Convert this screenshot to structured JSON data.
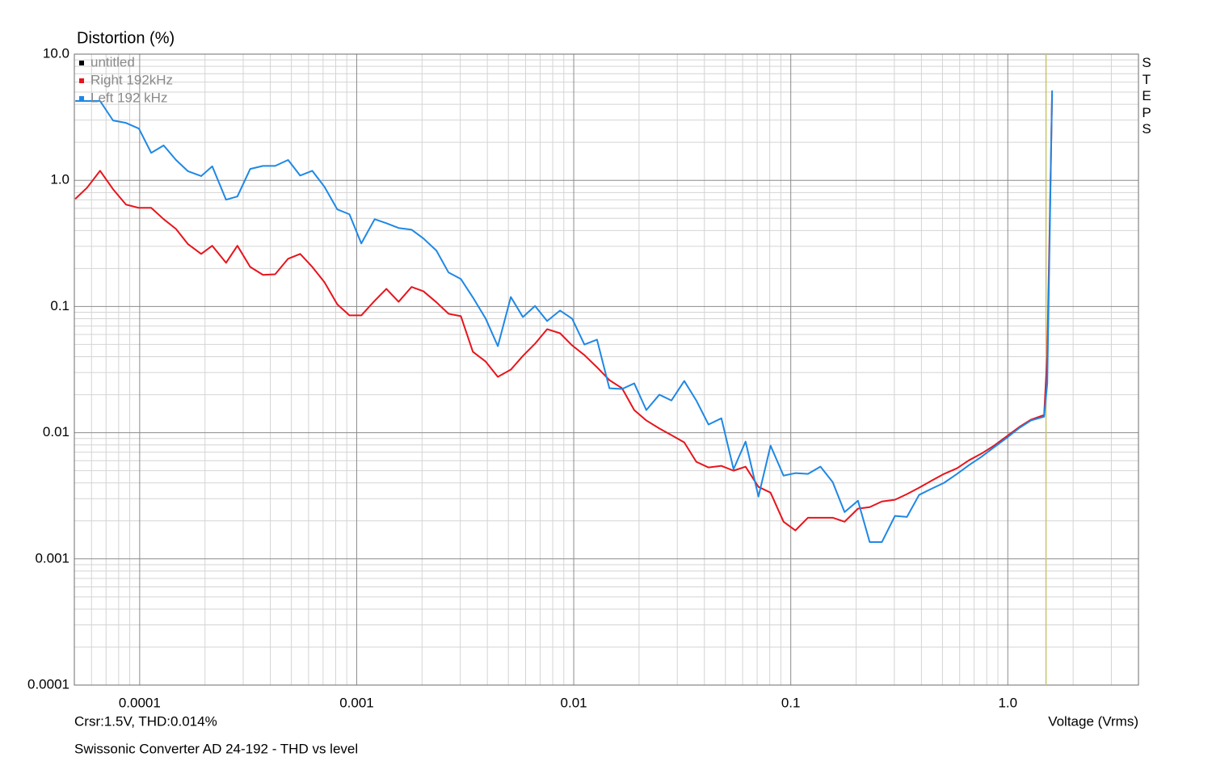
{
  "chart_data": {
    "type": "line",
    "title": "Distortion (%)",
    "subtitle": "Swissonic Converter AD 24-192 - THD vs level",
    "x_label": "Voltage (Vrms)",
    "side_label": "STEPS",
    "annotation": "Crsr:1.5V, THD:0.014%",
    "cursor_x": 1.5,
    "cursor_color": "#c8c46a",
    "log_x": true,
    "log_y": true,
    "grid": true,
    "legend": "top-left",
    "xlim": [
      5e-05,
      4
    ],
    "ylim": [
      0.0001,
      10
    ],
    "xticks": [
      0.0001,
      0.001,
      0.01,
      0.1,
      {
        "value": 1,
        "label": "1.0"
      }
    ],
    "yticks": [
      0.0001,
      0.001,
      0.01,
      0.1,
      {
        "value": 1,
        "label": "1.0"
      },
      {
        "value": 10,
        "label": "10.0"
      }
    ],
    "x": [
      5.05e-05,
      5.73e-05,
      6.57e-05,
      7.54e-05,
      8.65e-05,
      9.92e-05,
      0.000113,
      0.000129,
      0.000147,
      0.000167,
      0.000192,
      0.000216,
      0.00025,
      0.000282,
      0.000323,
      0.00037,
      0.000421,
      0.000483,
      0.000549,
      0.000624,
      0.00071,
      0.000814,
      0.000926,
      0.00105,
      0.00121,
      0.00137,
      0.00156,
      0.00179,
      0.00203,
      0.00233,
      0.00265,
      0.00302,
      0.00343,
      0.00393,
      0.00447,
      0.00513,
      0.00583,
      0.00663,
      0.00754,
      0.00865,
      0.00983,
      0.0112,
      0.0128,
      0.0146,
      0.0167,
      0.019,
      0.0216,
      0.0248,
      0.0282,
      0.0323,
      0.0367,
      0.0418,
      0.0479,
      0.0545,
      0.0619,
      0.071,
      0.0807,
      0.0926,
      0.105,
      0.12,
      0.137,
      0.156,
      0.177,
      0.204,
      0.231,
      0.263,
      0.302,
      0.343,
      0.39,
      0.447,
      0.508,
      0.583,
      0.663,
      0.754,
      0.865,
      0.983,
      1.13,
      1.28,
      1.47,
      1.52,
      1.6
    ],
    "series": [
      {
        "name": "untitled",
        "color": "#000000",
        "values": [
          null,
          null,
          null,
          null,
          null,
          null,
          null,
          null,
          null,
          null,
          null,
          null,
          null,
          null,
          null,
          null,
          null,
          null,
          null,
          null,
          null,
          null,
          null,
          null,
          null,
          null,
          null,
          null,
          null,
          null,
          null,
          null,
          null,
          null,
          null,
          null,
          null,
          null,
          null,
          null,
          null,
          null,
          null,
          null,
          null,
          null,
          null,
          null,
          null,
          null,
          null,
          null,
          null,
          null,
          null,
          null,
          null,
          null,
          null,
          null,
          null,
          null,
          null,
          null,
          null,
          null,
          null,
          null,
          null,
          null,
          null,
          null,
          null,
          null,
          null,
          null,
          null,
          null,
          null,
          null,
          null
        ]
      },
      {
        "name": "Right 192kHz",
        "color": "#e8141c",
        "values": [
          0.712,
          0.876,
          1.19,
          0.85,
          0.642,
          0.605,
          0.605,
          0.492,
          0.412,
          0.312,
          0.261,
          0.303,
          0.222,
          0.303,
          0.206,
          0.178,
          0.18,
          0.239,
          0.261,
          0.206,
          0.156,
          0.104,
          0.085,
          0.085,
          0.111,
          0.138,
          0.109,
          0.143,
          0.132,
          0.108,
          0.0876,
          0.0838,
          0.0438,
          0.0366,
          0.0277,
          0.0316,
          0.0406,
          0.0507,
          0.0661,
          0.0614,
          0.0492,
          0.0412,
          0.033,
          0.0261,
          0.0225,
          0.0151,
          0.0125,
          0.0108,
          0.00957,
          0.00838,
          0.00588,
          0.0053,
          0.00546,
          0.005,
          0.00538,
          0.00372,
          0.00335,
          0.00197,
          0.00168,
          0.00212,
          0.00212,
          0.00212,
          0.00197,
          0.0025,
          0.00257,
          0.00285,
          0.00294,
          0.00326,
          0.00366,
          0.00418,
          0.00471,
          0.00522,
          0.00605,
          0.00681,
          0.0079,
          0.00929,
          0.0111,
          0.0127,
          0.0138,
          0.0412,
          4.78
        ]
      },
      {
        "name": "Left 192 kHz",
        "color": "#1e88e5",
        "values": [
          4.25,
          4.25,
          4.25,
          2.98,
          2.85,
          2.57,
          1.65,
          1.89,
          1.45,
          1.18,
          1.08,
          1.29,
          0.702,
          0.745,
          1.23,
          1.3,
          1.3,
          1.45,
          1.09,
          1.19,
          0.889,
          0.588,
          0.538,
          0.316,
          0.492,
          0.457,
          0.419,
          0.406,
          0.346,
          0.277,
          0.186,
          0.165,
          0.118,
          0.0801,
          0.0485,
          0.119,
          0.0825,
          0.101,
          0.0767,
          0.0929,
          0.0801,
          0.05,
          0.0546,
          0.0225,
          0.0222,
          0.0246,
          0.0151,
          0.02,
          0.018,
          0.0257,
          0.018,
          0.0116,
          0.013,
          0.00514,
          0.0085,
          0.00312,
          0.0079,
          0.00457,
          0.00478,
          0.00471,
          0.00538,
          0.00406,
          0.00235,
          0.00289,
          0.00136,
          0.00136,
          0.00219,
          0.00215,
          0.00321,
          0.00361,
          0.004,
          0.00471,
          0.00554,
          0.00642,
          0.00767,
          0.00902,
          0.0109,
          0.0125,
          0.0134,
          0.0246,
          5.15
        ]
      }
    ]
  }
}
